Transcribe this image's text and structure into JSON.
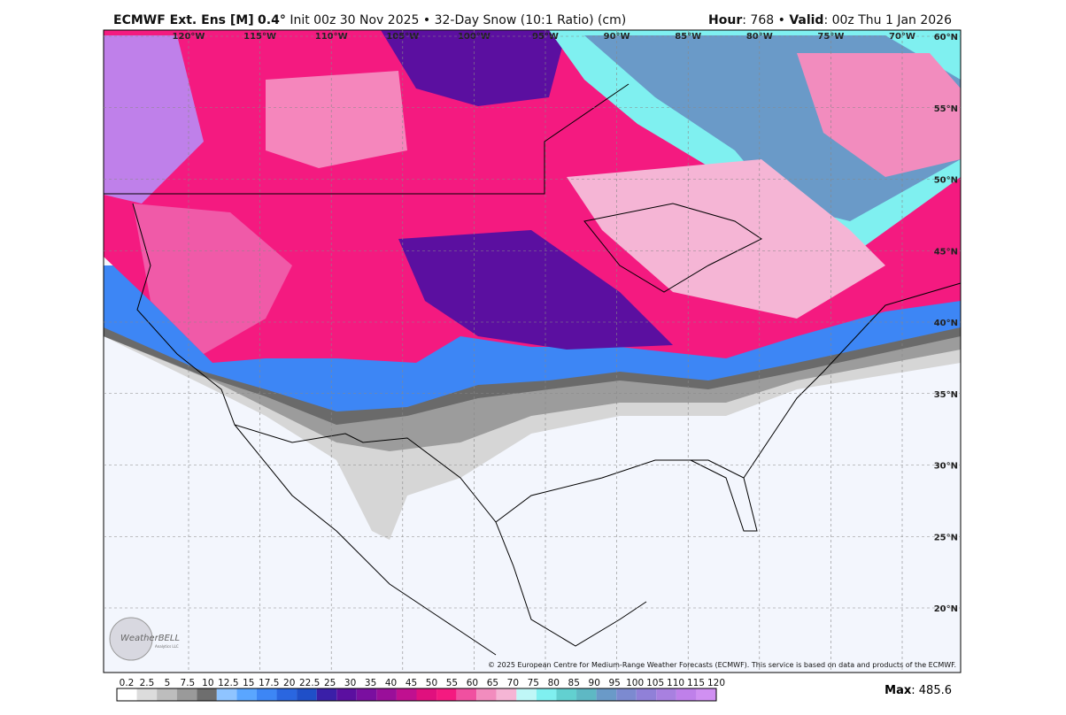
{
  "header": {
    "model": "ECMWF Ext. Ens [M]",
    "resolution": "0.4°",
    "description": "Init 00z 30 Nov 2025 • 32-Day Snow (10:1 Ratio) (cm)",
    "hour_label": "Hour",
    "hour_text": ": 768 • ",
    "valid_label": "Valid",
    "valid_text": ": 00z Thu 1 Jan 2026"
  },
  "map": {
    "longitude_labels": [
      "120°W",
      "115°W",
      "110°W",
      "105°W",
      "100°W",
      "95°W",
      "90°W",
      "85°W",
      "80°W",
      "75°W",
      "70°W"
    ],
    "latitude_labels": [
      "60°N",
      "55°N",
      "50°N",
      "45°N",
      "40°N",
      "35°N",
      "30°N",
      "25°N",
      "20°N"
    ],
    "copyright": "© 2025 European Centre for Medium-Range Weather Forecasts (ECMWF). This service is based on data and products of the ECMWF.",
    "logo": {
      "name": "WeatherBELL",
      "subtitle": "Analytics LLC"
    }
  },
  "legend": {
    "levels": [
      "0.2",
      "2.5",
      "5",
      "7.5",
      "10",
      "12.5",
      "15",
      "17.5",
      "20",
      "22.5",
      "25",
      "30",
      "35",
      "40",
      "45",
      "50",
      "55",
      "60",
      "65",
      "70",
      "75",
      "80",
      "85",
      "90",
      "95",
      "100",
      "105",
      "110",
      "115",
      "120"
    ],
    "colors": [
      "#ffffff",
      "#dcdcdc",
      "#bdbdbd",
      "#9a9a9a",
      "#6e6e6e",
      "#8fc4ff",
      "#5aa6ff",
      "#3d86f5",
      "#2a66e0",
      "#1f4fc8",
      "#3a1fa8",
      "#5b0fa0",
      "#7a0fa0",
      "#9a0f9a",
      "#c01090",
      "#e0107e",
      "#f41a80",
      "#f050a0",
      "#f28cbe",
      "#f5b5d5",
      "#bff7f7",
      "#7ff0f0",
      "#62d0d0",
      "#5eb8c4",
      "#6a9ac8",
      "#7c8ad0",
      "#9080d8",
      "#a880e0",
      "#bf80ea",
      "#d090f2"
    ],
    "max_label": "Max",
    "max_value": ": 485.6"
  }
}
